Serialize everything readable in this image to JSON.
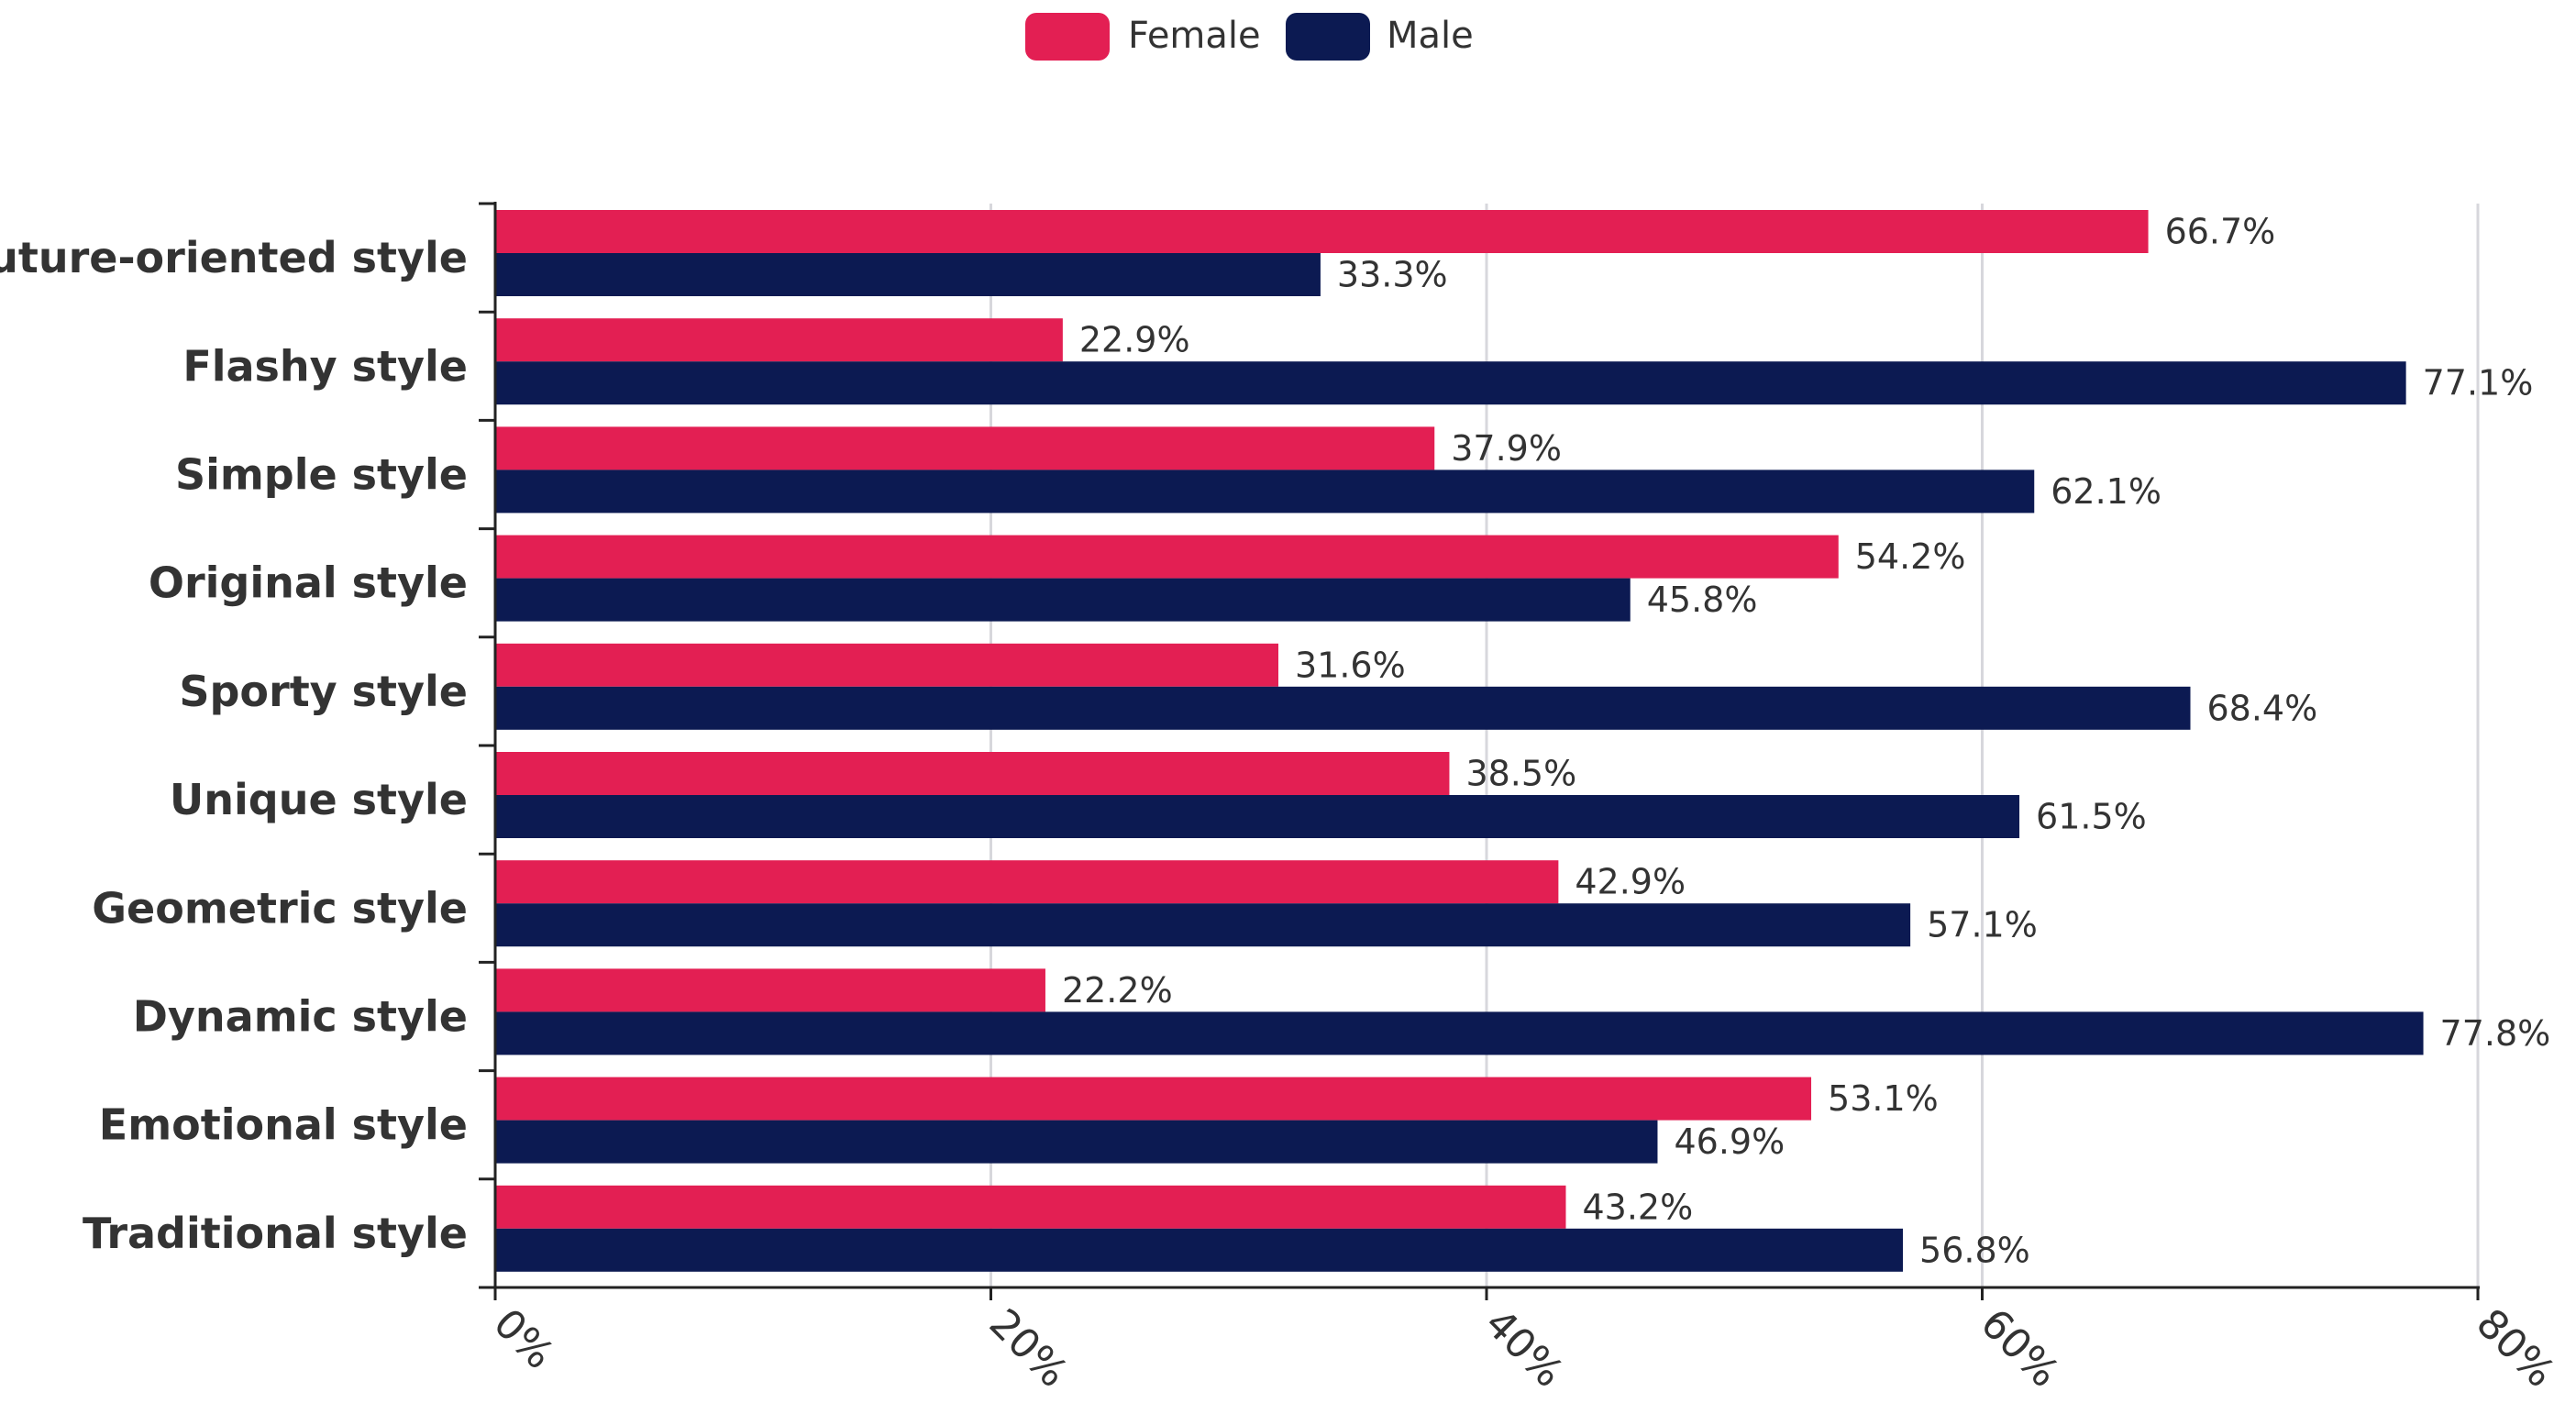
{
  "chart_data": {
    "type": "bar",
    "orientation": "horizontal",
    "title": "",
    "xlabel": "",
    "ylabel": "",
    "xlim": [
      0,
      80
    ],
    "grid": true,
    "legend_position": "top-center",
    "categories": [
      "Future-oriented style",
      "Flashy style",
      "Simple style",
      "Original style",
      "Sporty style",
      "Unique style",
      "Geometric style",
      "Dynamic style",
      "Emotional style",
      "Traditional style"
    ],
    "ticks": [
      0,
      20,
      40,
      60,
      80
    ],
    "tick_labels": [
      "0%",
      "20%",
      "40%",
      "60%",
      "80%"
    ],
    "series": [
      {
        "name": "Female",
        "color": "#E31F53",
        "values": [
          66.7,
          22.9,
          37.9,
          54.2,
          31.6,
          38.5,
          42.9,
          22.2,
          53.1,
          43.2
        ],
        "labels": [
          "66.7%",
          "22.9%",
          "37.9%",
          "54.2%",
          "31.6%",
          "38.5%",
          "42.9%",
          "22.2%",
          "53.1%",
          "43.2%"
        ]
      },
      {
        "name": "Male",
        "color": "#0C1A52",
        "values": [
          33.3,
          77.1,
          62.1,
          45.8,
          68.4,
          61.5,
          57.1,
          77.8,
          46.9,
          56.8
        ],
        "labels": [
          "33.3%",
          "77.1%",
          "62.1%",
          "45.8%",
          "68.4%",
          "61.5%",
          "57.1%",
          "77.8%",
          "46.9%",
          "56.8%"
        ]
      }
    ]
  }
}
